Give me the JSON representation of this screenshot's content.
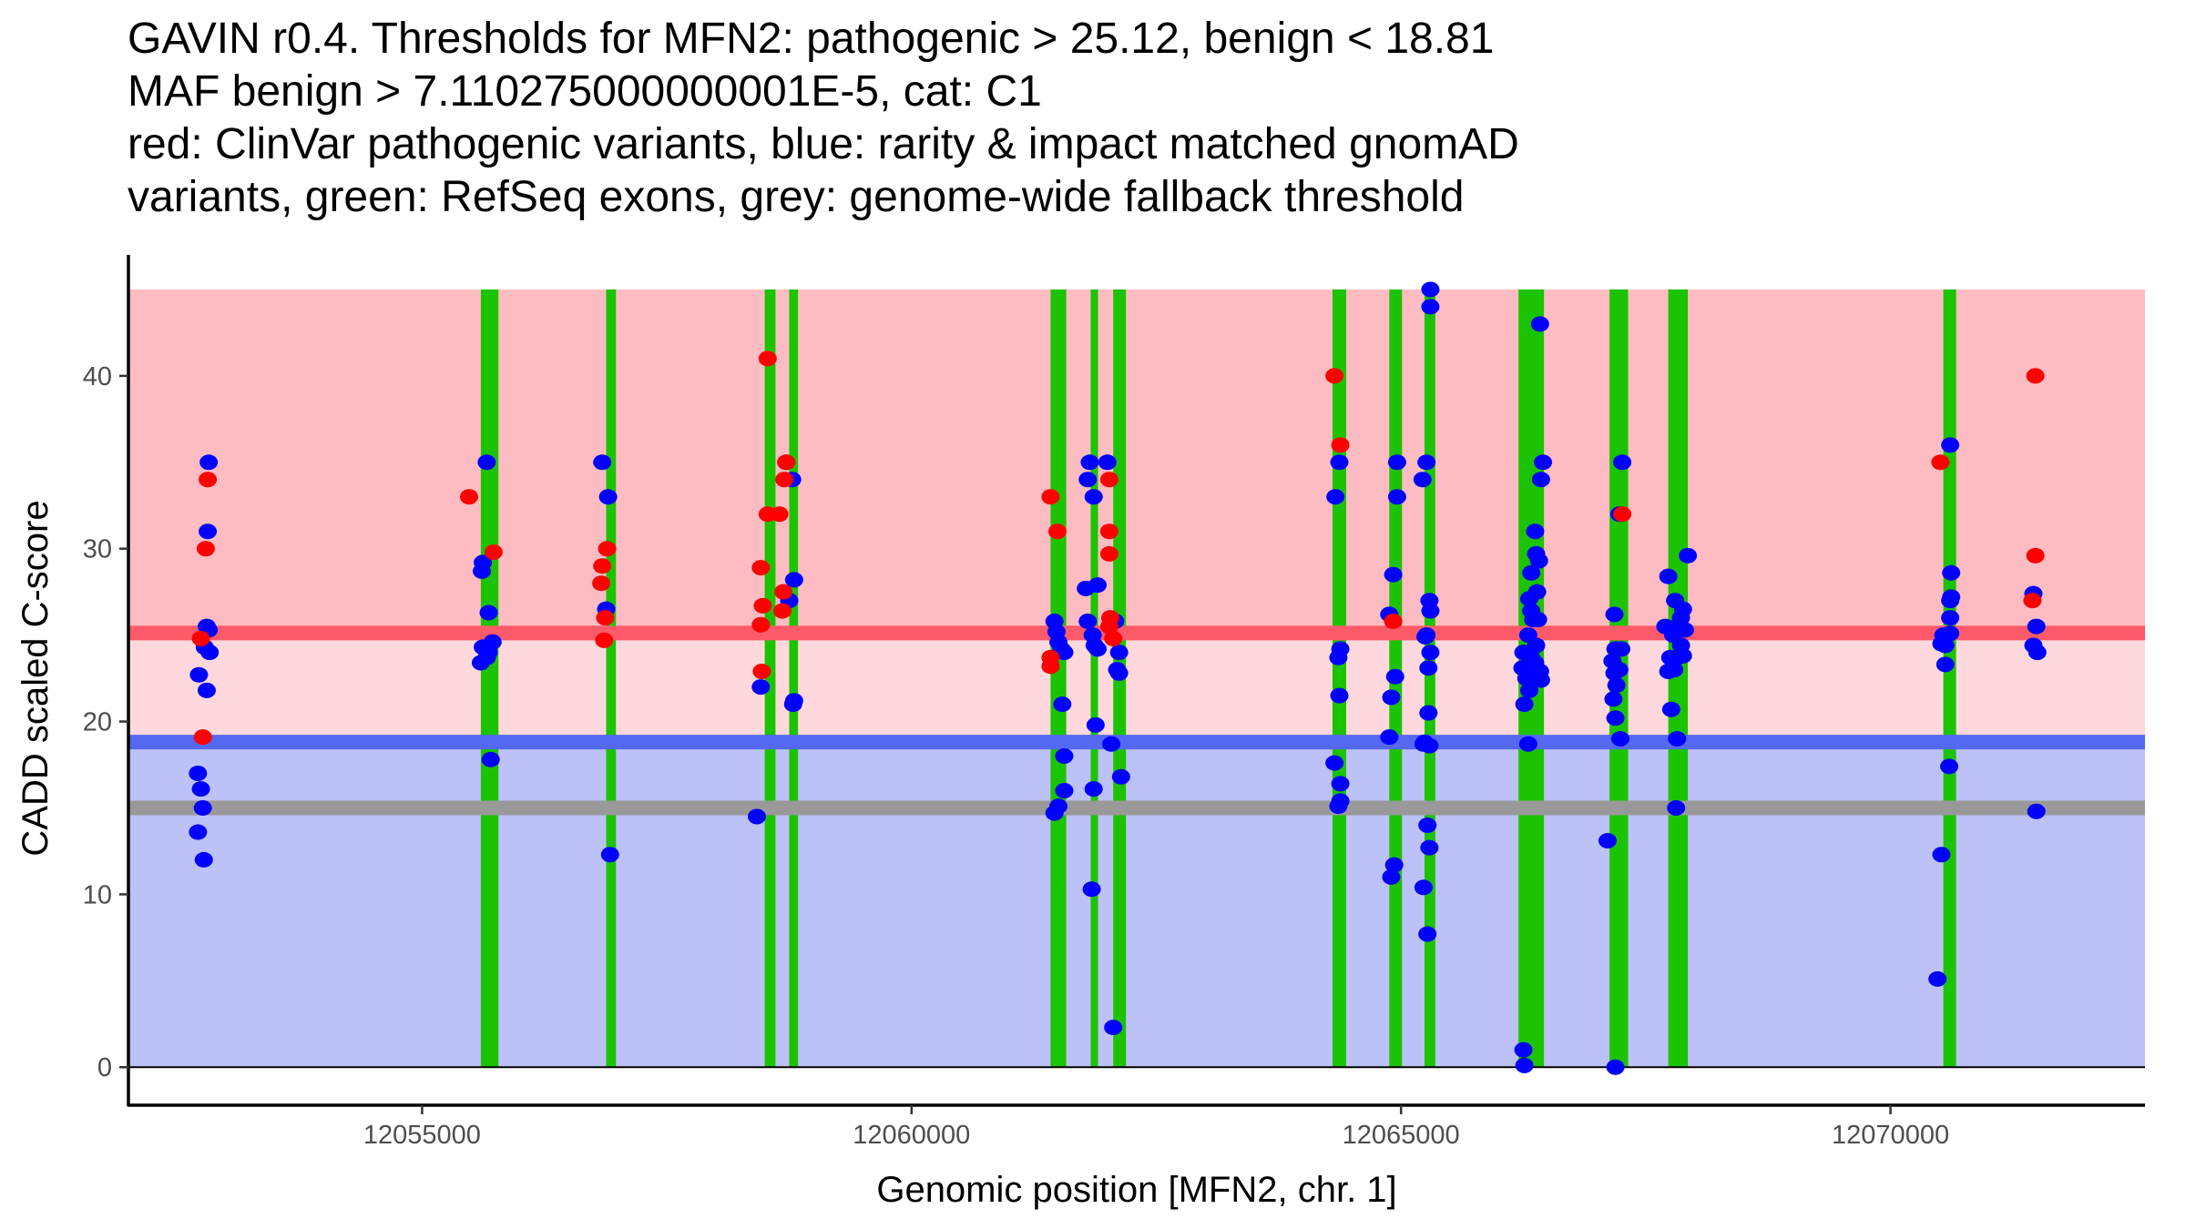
{
  "title_lines": [
    "GAVIN r0.4. Thresholds for MFN2: pathogenic > 25.12, benign < 18.81",
    "MAF benign > 7.110275000000001E-5, cat: C1",
    "red: ClinVar pathogenic variants, blue: rarity & impact matched gnomAD",
    "variants, green: RefSeq exons, grey: genome-wide fallback threshold"
  ],
  "chart_data": {
    "type": "scatter",
    "title": "GAVIN r0.4. Thresholds for MFN2: pathogenic > 25.12, benign < 18.81 / MAF benign > 7.110275000000001E-5, cat: C1",
    "xlabel": "Genomic position [MFN2, chr. 1]",
    "ylabel": "CADD scaled C-score",
    "xlim": [
      12052000,
      12072600
    ],
    "ylim": [
      -2.2,
      47
    ],
    "x_ticks": [
      12055000,
      12060000,
      12065000,
      12070000
    ],
    "x_tick_labels": [
      "12055000",
      "12060000",
      "12065000",
      "12070000"
    ],
    "y_ticks": [
      0,
      10,
      20,
      30,
      40
    ],
    "y_tick_labels": [
      "0",
      "10",
      "20",
      "30",
      "40"
    ],
    "grid": false,
    "legend": "none (described in title)",
    "colors": {
      "pathogenic_zone": "#fdbcc1",
      "grey_zone": "#fed8dc",
      "benign_zone": "#bcc1f8",
      "pathogenic_threshold": "#fd5a6a",
      "benign_threshold": "#5468f0",
      "fallback_threshold": "#999999",
      "exon": "#1cc300",
      "pathogenic_point": "#ff0000",
      "benign_point": "#0000ff"
    },
    "zones": {
      "pathogenic": [
        25.12,
        45
      ],
      "intermediate": [
        18.81,
        25.12
      ],
      "benign": [
        0,
        18.81
      ]
    },
    "thresholds": {
      "pathogenic": 25.12,
      "benign": 18.81,
      "genome_wide_fallback": 15.0
    },
    "exons": [
      {
        "start": 12055600,
        "end": 12055780
      },
      {
        "start": 12056880,
        "end": 12056980
      },
      {
        "start": 12058500,
        "end": 12058610
      },
      {
        "start": 12058750,
        "end": 12058840
      },
      {
        "start": 12061420,
        "end": 12061580
      },
      {
        "start": 12061830,
        "end": 12061900
      },
      {
        "start": 12062060,
        "end": 12062190
      },
      {
        "start": 12064300,
        "end": 12064440
      },
      {
        "start": 12064880,
        "end": 12065010
      },
      {
        "start": 12065240,
        "end": 12065350
      },
      {
        "start": 12066200,
        "end": 12066460
      },
      {
        "start": 12067130,
        "end": 12067320
      },
      {
        "start": 12067730,
        "end": 12067930
      },
      {
        "start": 12070540,
        "end": 12070670
      }
    ],
    "series": [
      {
        "name": "ClinVar pathogenic variants",
        "color": "#ff0000",
        "points": [
          [
            12052810,
            34
          ],
          [
            12052790,
            30
          ],
          [
            12052740,
            24.8
          ],
          [
            12052760,
            19.1
          ],
          [
            12055480,
            33
          ],
          [
            12055730,
            29.8
          ],
          [
            12056840,
            29
          ],
          [
            12056830,
            28
          ],
          [
            12056870,
            26
          ],
          [
            12056860,
            24.7
          ],
          [
            12056890,
            30
          ],
          [
            12058460,
            28.9
          ],
          [
            12058480,
            26.7
          ],
          [
            12058460,
            25.6
          ],
          [
            12058470,
            22.9
          ],
          [
            12058530,
            41
          ],
          [
            12058530,
            32
          ],
          [
            12058650,
            32
          ],
          [
            12058700,
            34
          ],
          [
            12058720,
            35
          ],
          [
            12058690,
            27.5
          ],
          [
            12058680,
            26.4
          ],
          [
            12061420,
            33
          ],
          [
            12061490,
            31
          ],
          [
            12061420,
            23.7
          ],
          [
            12061420,
            23.2
          ],
          [
            12062020,
            34
          ],
          [
            12062020,
            31
          ],
          [
            12062020,
            29.7
          ],
          [
            12062030,
            26
          ],
          [
            12062020,
            25.5
          ],
          [
            12062060,
            24.8
          ],
          [
            12064320,
            40
          ],
          [
            12064380,
            36
          ],
          [
            12064920,
            25.8
          ],
          [
            12067260,
            32
          ],
          [
            12070510,
            35
          ],
          [
            12071480,
            40
          ],
          [
            12071480,
            29.6
          ],
          [
            12071450,
            27
          ]
        ]
      },
      {
        "name": "rarity & impact matched gnomAD variants",
        "color": "#0000ff",
        "points": [
          [
            12052820,
            35
          ],
          [
            12052810,
            31
          ],
          [
            12052800,
            25.5
          ],
          [
            12052820,
            25.3
          ],
          [
            12052780,
            24.3
          ],
          [
            12052830,
            24
          ],
          [
            12052720,
            22.7
          ],
          [
            12052800,
            21.8
          ],
          [
            12052710,
            17
          ],
          [
            12052740,
            16.1
          ],
          [
            12052760,
            15
          ],
          [
            12052710,
            13.6
          ],
          [
            12052770,
            12
          ],
          [
            12055660,
            35
          ],
          [
            12055620,
            29.2
          ],
          [
            12055610,
            28.7
          ],
          [
            12055680,
            26.3
          ],
          [
            12055620,
            24.3
          ],
          [
            12055720,
            24.6
          ],
          [
            12055680,
            24
          ],
          [
            12055660,
            23.7
          ],
          [
            12055600,
            23.4
          ],
          [
            12055700,
            17.8
          ],
          [
            12056840,
            35
          ],
          [
            12056900,
            33
          ],
          [
            12056880,
            26.5
          ],
          [
            12056920,
            12.3
          ],
          [
            12058460,
            22
          ],
          [
            12058420,
            14.5
          ],
          [
            12058720,
            35
          ],
          [
            12058780,
            34
          ],
          [
            12058800,
            28.2
          ],
          [
            12058750,
            27
          ],
          [
            12058790,
            21
          ],
          [
            12058800,
            21.2
          ],
          [
            12061460,
            25.8
          ],
          [
            12061480,
            25.2
          ],
          [
            12061500,
            24.6
          ],
          [
            12061530,
            24.2
          ],
          [
            12061560,
            24
          ],
          [
            12061540,
            21
          ],
          [
            12061560,
            18
          ],
          [
            12061560,
            16
          ],
          [
            12061500,
            15.1
          ],
          [
            12061460,
            14.7
          ],
          [
            12061820,
            35
          ],
          [
            12061800,
            34
          ],
          [
            12061860,
            33
          ],
          [
            12061900,
            27.9
          ],
          [
            12061780,
            27.7
          ],
          [
            12061800,
            25.8
          ],
          [
            12061850,
            25
          ],
          [
            12061870,
            24.4
          ],
          [
            12061900,
            24.2
          ],
          [
            12061880,
            19.8
          ],
          [
            12061860,
            16.1
          ],
          [
            12061840,
            10.3
          ],
          [
            12062000,
            35
          ],
          [
            12062080,
            25.8
          ],
          [
            12062120,
            24
          ],
          [
            12062100,
            23
          ],
          [
            12062120,
            22.8
          ],
          [
            12062040,
            18.7
          ],
          [
            12062140,
            16.8
          ],
          [
            12062060,
            2.3
          ],
          [
            12064370,
            35
          ],
          [
            12064330,
            33
          ],
          [
            12064380,
            24.2
          ],
          [
            12064360,
            23.7
          ],
          [
            12064370,
            21.5
          ],
          [
            12064320,
            17.6
          ],
          [
            12064380,
            16.4
          ],
          [
            12064380,
            15.4
          ],
          [
            12064360,
            15.1
          ],
          [
            12064960,
            35
          ],
          [
            12064960,
            33
          ],
          [
            12064920,
            28.5
          ],
          [
            12064880,
            26.2
          ],
          [
            12064940,
            22.6
          ],
          [
            12064900,
            21.4
          ],
          [
            12064880,
            19.1
          ],
          [
            12064930,
            11.7
          ],
          [
            12064900,
            11
          ],
          [
            12065300,
            45
          ],
          [
            12065300,
            44
          ],
          [
            12065260,
            35
          ],
          [
            12065220,
            34
          ],
          [
            12065290,
            27
          ],
          [
            12065300,
            26.4
          ],
          [
            12065260,
            25
          ],
          [
            12065250,
            24.9
          ],
          [
            12065300,
            24
          ],
          [
            12065280,
            23.1
          ],
          [
            12065280,
            20.5
          ],
          [
            12065240,
            18.8
          ],
          [
            12065290,
            18.6
          ],
          [
            12065230,
            18.7
          ],
          [
            12065270,
            14
          ],
          [
            12065290,
            12.7
          ],
          [
            12065230,
            10.4
          ],
          [
            12065270,
            7.7
          ],
          [
            12066420,
            43
          ],
          [
            12066450,
            35
          ],
          [
            12066430,
            34
          ],
          [
            12066370,
            31
          ],
          [
            12066380,
            29.7
          ],
          [
            12066410,
            29.3
          ],
          [
            12066330,
            28.6
          ],
          [
            12066390,
            27.5
          ],
          [
            12066310,
            27.1
          ],
          [
            12066330,
            26.4
          ],
          [
            12066350,
            25.9
          ],
          [
            12066400,
            25.9
          ],
          [
            12066300,
            25
          ],
          [
            12066380,
            24.4
          ],
          [
            12066250,
            24
          ],
          [
            12066330,
            23.7
          ],
          [
            12066370,
            23.4
          ],
          [
            12066240,
            23.1
          ],
          [
            12066420,
            22.9
          ],
          [
            12066280,
            22.5
          ],
          [
            12066430,
            22.4
          ],
          [
            12066310,
            21.8
          ],
          [
            12066260,
            21
          ],
          [
            12066300,
            18.7
          ],
          [
            12066250,
            1
          ],
          [
            12066260,
            0.1
          ],
          [
            12067260,
            35
          ],
          [
            12067230,
            32
          ],
          [
            12067180,
            26.2
          ],
          [
            12067190,
            24.2
          ],
          [
            12067250,
            24.2
          ],
          [
            12067160,
            23.5
          ],
          [
            12067230,
            23
          ],
          [
            12067180,
            22.8
          ],
          [
            12067200,
            22.1
          ],
          [
            12067170,
            21.3
          ],
          [
            12067190,
            20.2
          ],
          [
            12067240,
            19
          ],
          [
            12067110,
            13.1
          ],
          [
            12067190,
            0
          ],
          [
            12067730,
            28.4
          ],
          [
            12067930,
            29.6
          ],
          [
            12067700,
            25.5
          ],
          [
            12067800,
            27
          ],
          [
            12067880,
            26.5
          ],
          [
            12067860,
            26
          ],
          [
            12067820,
            25.5
          ],
          [
            12067900,
            25.3
          ],
          [
            12067780,
            25
          ],
          [
            12067860,
            24.4
          ],
          [
            12067750,
            23.7
          ],
          [
            12067820,
            23.7
          ],
          [
            12067880,
            23.8
          ],
          [
            12067730,
            22.9
          ],
          [
            12067790,
            23
          ],
          [
            12067760,
            20.7
          ],
          [
            12067820,
            19
          ],
          [
            12067810,
            15
          ],
          [
            12070610,
            36
          ],
          [
            12070620,
            28.6
          ],
          [
            12070620,
            27.2
          ],
          [
            12070610,
            27
          ],
          [
            12070610,
            26
          ],
          [
            12070610,
            25.1
          ],
          [
            12070540,
            25
          ],
          [
            12070520,
            24.5
          ],
          [
            12070560,
            24.4
          ],
          [
            12070560,
            23.3
          ],
          [
            12070600,
            17.4
          ],
          [
            12070520,
            12.3
          ],
          [
            12070480,
            5.1
          ],
          [
            12071460,
            27.4
          ],
          [
            12071490,
            25.5
          ],
          [
            12071460,
            24.4
          ],
          [
            12071500,
            24
          ],
          [
            12071490,
            14.8
          ]
        ]
      }
    ]
  }
}
